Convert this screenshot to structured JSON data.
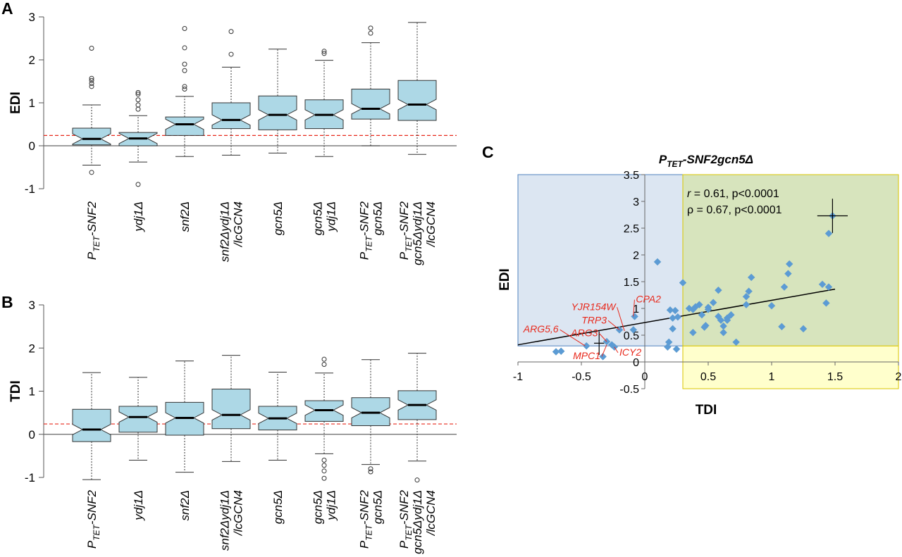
{
  "chart_data": [
    {
      "panel": "A",
      "type": "boxplot",
      "ylabel": "EDI",
      "ylim": [
        -1,
        3
      ],
      "yticks": [
        "3",
        "2",
        "1",
        "0",
        "-1"
      ],
      "reference_line": 0.24,
      "box_color": "#add8e6",
      "reference_color": "#e8291c",
      "categories": [
        {
          "lines": [
            [
              "P",
              "TET",
              "-SNF2"
            ]
          ]
        },
        {
          "lines": [
            [
              "ydj1Δ"
            ]
          ]
        },
        {
          "lines": [
            [
              "snf2Δ"
            ]
          ]
        },
        {
          "lines": [
            [
              "snf2Δydj1Δ"
            ],
            [
              "/lcGCN4"
            ]
          ]
        },
        {
          "lines": [
            [
              "gcn5Δ"
            ]
          ]
        },
        {
          "lines": [
            [
              "gcn5Δ"
            ],
            [
              "ydj1Δ"
            ]
          ]
        },
        {
          "lines": [
            [
              "P",
              "TET",
              "-SNF2"
            ],
            [
              "gcn5Δ"
            ]
          ]
        },
        {
          "lines": [
            [
              "P",
              "TET",
              "-SNF2"
            ],
            [
              "gcn5Δydj1Δ"
            ],
            [
              "/lcGCN4"
            ]
          ]
        }
      ],
      "boxes": [
        {
          "min": -0.45,
          "q1": 0.02,
          "median": 0.16,
          "q3": 0.41,
          "max": 0.95,
          "outliers": [
            1.38,
            1.45,
            1.52,
            1.57,
            2.27,
            -0.62
          ]
        },
        {
          "min": -0.38,
          "q1": 0.0,
          "median": 0.17,
          "q3": 0.31,
          "max": 0.7,
          "outliers": [
            0.85,
            0.95,
            1.07,
            1.2,
            1.24,
            -0.9
          ]
        },
        {
          "min": -0.25,
          "q1": 0.24,
          "median": 0.5,
          "q3": 0.67,
          "max": 1.15,
          "outliers": [
            1.32,
            1.38,
            1.75,
            1.9,
            2.28,
            2.73
          ]
        },
        {
          "min": -0.22,
          "q1": 0.4,
          "median": 0.6,
          "q3": 1.0,
          "max": 1.83,
          "outliers": [
            2.13,
            2.66
          ]
        },
        {
          "min": -0.17,
          "q1": 0.37,
          "median": 0.72,
          "q3": 1.16,
          "max": 2.25,
          "outliers": []
        },
        {
          "min": -0.25,
          "q1": 0.4,
          "median": 0.72,
          "q3": 1.07,
          "max": 1.99,
          "outliers": [
            2.15,
            2.2
          ]
        },
        {
          "min": 0.0,
          "q1": 0.62,
          "median": 0.86,
          "q3": 1.32,
          "max": 2.4,
          "outliers": [
            2.62,
            2.74
          ]
        },
        {
          "min": -0.2,
          "q1": 0.59,
          "median": 0.96,
          "q3": 1.52,
          "max": 2.87,
          "outliers": []
        }
      ]
    },
    {
      "panel": "B",
      "type": "boxplot",
      "ylabel": "TDI",
      "ylim": [
        -1,
        3
      ],
      "yticks": [
        "3",
        "2",
        "1",
        "0",
        "-1"
      ],
      "reference_line": 0.24,
      "box_color": "#add8e6",
      "reference_color": "#e8291c",
      "categories": [
        {
          "lines": [
            [
              "P",
              "TET",
              "-SNF2"
            ]
          ]
        },
        {
          "lines": [
            [
              "ydj1Δ"
            ]
          ]
        },
        {
          "lines": [
            [
              "snf2Δ"
            ]
          ]
        },
        {
          "lines": [
            [
              "snf2Δydj1Δ"
            ],
            [
              "/lcGCN4"
            ]
          ]
        },
        {
          "lines": [
            [
              "gcn5Δ"
            ]
          ]
        },
        {
          "lines": [
            [
              "gcn5Δ"
            ],
            [
              "ydj1Δ"
            ]
          ]
        },
        {
          "lines": [
            [
              "P",
              "TET",
              "-SNF2"
            ],
            [
              "gcn5Δ"
            ]
          ]
        },
        {
          "lines": [
            [
              "P",
              "TET",
              "-SNF2"
            ],
            [
              "gcn5Δydj1Δ"
            ],
            [
              "/lcGCN4"
            ]
          ]
        }
      ],
      "boxes": [
        {
          "min": -1.05,
          "q1": -0.17,
          "median": 0.11,
          "q3": 0.58,
          "max": 1.43,
          "outliers": []
        },
        {
          "min": -0.6,
          "q1": 0.05,
          "median": 0.4,
          "q3": 0.65,
          "max": 1.32,
          "outliers": []
        },
        {
          "min": -0.88,
          "q1": -0.02,
          "median": 0.38,
          "q3": 0.74,
          "max": 1.7,
          "outliers": []
        },
        {
          "min": -0.63,
          "q1": 0.13,
          "median": 0.45,
          "q3": 1.05,
          "max": 1.83,
          "outliers": []
        },
        {
          "min": -0.6,
          "q1": 0.1,
          "median": 0.37,
          "q3": 0.65,
          "max": 1.44,
          "outliers": []
        },
        {
          "min": -0.45,
          "q1": 0.3,
          "median": 0.56,
          "q3": 0.78,
          "max": 1.42,
          "outliers": [
            1.62,
            1.74,
            -0.6,
            -0.72,
            -0.85,
            -1.02
          ]
        },
        {
          "min": -0.7,
          "q1": 0.2,
          "median": 0.5,
          "q3": 0.85,
          "max": 1.73,
          "outliers": [
            -0.8,
            -0.87
          ]
        },
        {
          "min": -0.62,
          "q1": 0.34,
          "median": 0.68,
          "q3": 1.01,
          "max": 1.88,
          "outliers": [
            -1.06
          ]
        }
      ]
    },
    {
      "panel": "C",
      "type": "scatter",
      "title": {
        "base": "P",
        "sub": "TET",
        "rest": "-SNF2gcn5Δ"
      },
      "xlabel": "TDI",
      "ylabel": "EDI",
      "xlim": [
        -1,
        2
      ],
      "ylim": [
        -0.5,
        3.5
      ],
      "xticks": [
        "-1",
        "-0.5",
        "0",
        "0.5",
        "1",
        "1.5",
        "2"
      ],
      "yticks": [
        "-0.5",
        "0",
        "0.5",
        "1",
        "1.5",
        "2",
        "2.5",
        "3",
        "3.5"
      ],
      "threshold": 0.3,
      "stats": {
        "r_symbol": "r",
        "r_text": " = 0.61, p<0.0001",
        "rho_text": "ρ = 0.67, p<0.0001"
      },
      "regression": {
        "x0": -1,
        "y0": 0.32,
        "x1": 1.5,
        "y1": 1.36
      },
      "point_color": "#5b9bd5",
      "blue_region": "#dce6f2",
      "yellow_region": "#ffffcc",
      "green_region": "#d7e4bd",
      "label_color": "#e8291c",
      "error_crosses": [
        {
          "x": -0.36,
          "y": 0.35,
          "x_err": 0.04,
          "y_err": 0.22
        },
        {
          "x": 1.48,
          "y": 2.73,
          "x_err": 0.12,
          "y_err": 0.32
        }
      ],
      "points": [
        {
          "x": -0.7,
          "y": 0.19
        },
        {
          "x": -0.66,
          "y": 0.2
        },
        {
          "x": -0.46,
          "y": 0.3
        },
        {
          "x": -0.33,
          "y": 0.1
        },
        {
          "x": -0.3,
          "y": 0.38
        },
        {
          "x": -0.26,
          "y": 0.32
        },
        {
          "x": -0.24,
          "y": 0.28
        },
        {
          "x": -0.2,
          "y": 0.6
        },
        {
          "x": -0.09,
          "y": 0.6
        },
        {
          "x": -0.08,
          "y": 0.85
        },
        {
          "x": 0.1,
          "y": 1.87
        },
        {
          "x": 0.18,
          "y": 0.28
        },
        {
          "x": 0.19,
          "y": 0.37
        },
        {
          "x": 0.2,
          "y": 0.97
        },
        {
          "x": 0.22,
          "y": 0.82
        },
        {
          "x": 0.22,
          "y": 0.62
        },
        {
          "x": 0.24,
          "y": 0.96
        },
        {
          "x": 0.25,
          "y": 0.24
        },
        {
          "x": 0.26,
          "y": 0.84
        },
        {
          "x": 0.3,
          "y": 1.48
        },
        {
          "x": 0.35,
          "y": 1.0
        },
        {
          "x": 0.38,
          "y": 0.98
        },
        {
          "x": 0.4,
          "y": 1.03
        },
        {
          "x": 0.43,
          "y": 1.07
        },
        {
          "x": 0.45,
          "y": 0.88
        },
        {
          "x": 0.5,
          "y": 0.98
        },
        {
          "x": 0.5,
          "y": 1.02
        },
        {
          "x": 0.54,
          "y": 1.11
        },
        {
          "x": 0.38,
          "y": 0.55
        },
        {
          "x": 0.47,
          "y": 0.65
        },
        {
          "x": 0.48,
          "y": 0.68
        },
        {
          "x": 0.58,
          "y": 0.85
        },
        {
          "x": 0.58,
          "y": 1.34
        },
        {
          "x": 0.6,
          "y": 0.78
        },
        {
          "x": 0.62,
          "y": 0.67
        },
        {
          "x": 0.62,
          "y": 0.55
        },
        {
          "x": 0.65,
          "y": 0.78
        },
        {
          "x": 0.65,
          "y": 0.82
        },
        {
          "x": 0.68,
          "y": 0.88
        },
        {
          "x": 0.72,
          "y": 0.37
        },
        {
          "x": 0.8,
          "y": 1.07
        },
        {
          "x": 0.8,
          "y": 1.22
        },
        {
          "x": 0.82,
          "y": 1.32
        },
        {
          "x": 0.84,
          "y": 1.58
        },
        {
          "x": 1.0,
          "y": 1.05
        },
        {
          "x": 1.08,
          "y": 0.66
        },
        {
          "x": 1.1,
          "y": 1.4
        },
        {
          "x": 1.13,
          "y": 1.65
        },
        {
          "x": 1.14,
          "y": 1.83
        },
        {
          "x": 1.25,
          "y": 0.62
        },
        {
          "x": 1.4,
          "y": 1.45
        },
        {
          "x": 1.43,
          "y": 1.1
        },
        {
          "x": 1.45,
          "y": 1.4
        },
        {
          "x": 1.45,
          "y": 2.4
        },
        {
          "x": 1.48,
          "y": 2.73
        }
      ],
      "gene_labels": [
        {
          "text": "CPA2",
          "tx": -0.07,
          "ty": 1.11,
          "px": -0.09,
          "py": 0.85,
          "anchor": "start"
        },
        {
          "text": "YJR154W",
          "tx": -0.23,
          "ty": 0.97,
          "px": -0.16,
          "py": 0.58,
          "anchor": "end"
        },
        {
          "text": "TRP3",
          "tx": -0.3,
          "ty": 0.72,
          "px": -0.2,
          "py": 0.6,
          "anchor": "end"
        },
        {
          "text": "ARG5,6",
          "tx": -0.68,
          "ty": 0.55,
          "px": -0.47,
          "py": 0.3,
          "anchor": "end"
        },
        {
          "text": "ARG3",
          "tx": -0.37,
          "ty": 0.48,
          "px": -0.3,
          "py": 0.38,
          "anchor": "end"
        },
        {
          "text": "MPC1",
          "tx": -0.35,
          "ty": 0.05,
          "px": -0.3,
          "py": 0.32,
          "anchor": "end"
        },
        {
          "text": "ICY2",
          "tx": -0.2,
          "ty": 0.12,
          "px": -0.24,
          "py": 0.28,
          "anchor": "start"
        }
      ]
    }
  ],
  "panel_letters": {
    "a": "A",
    "b": "B",
    "c": "C"
  }
}
